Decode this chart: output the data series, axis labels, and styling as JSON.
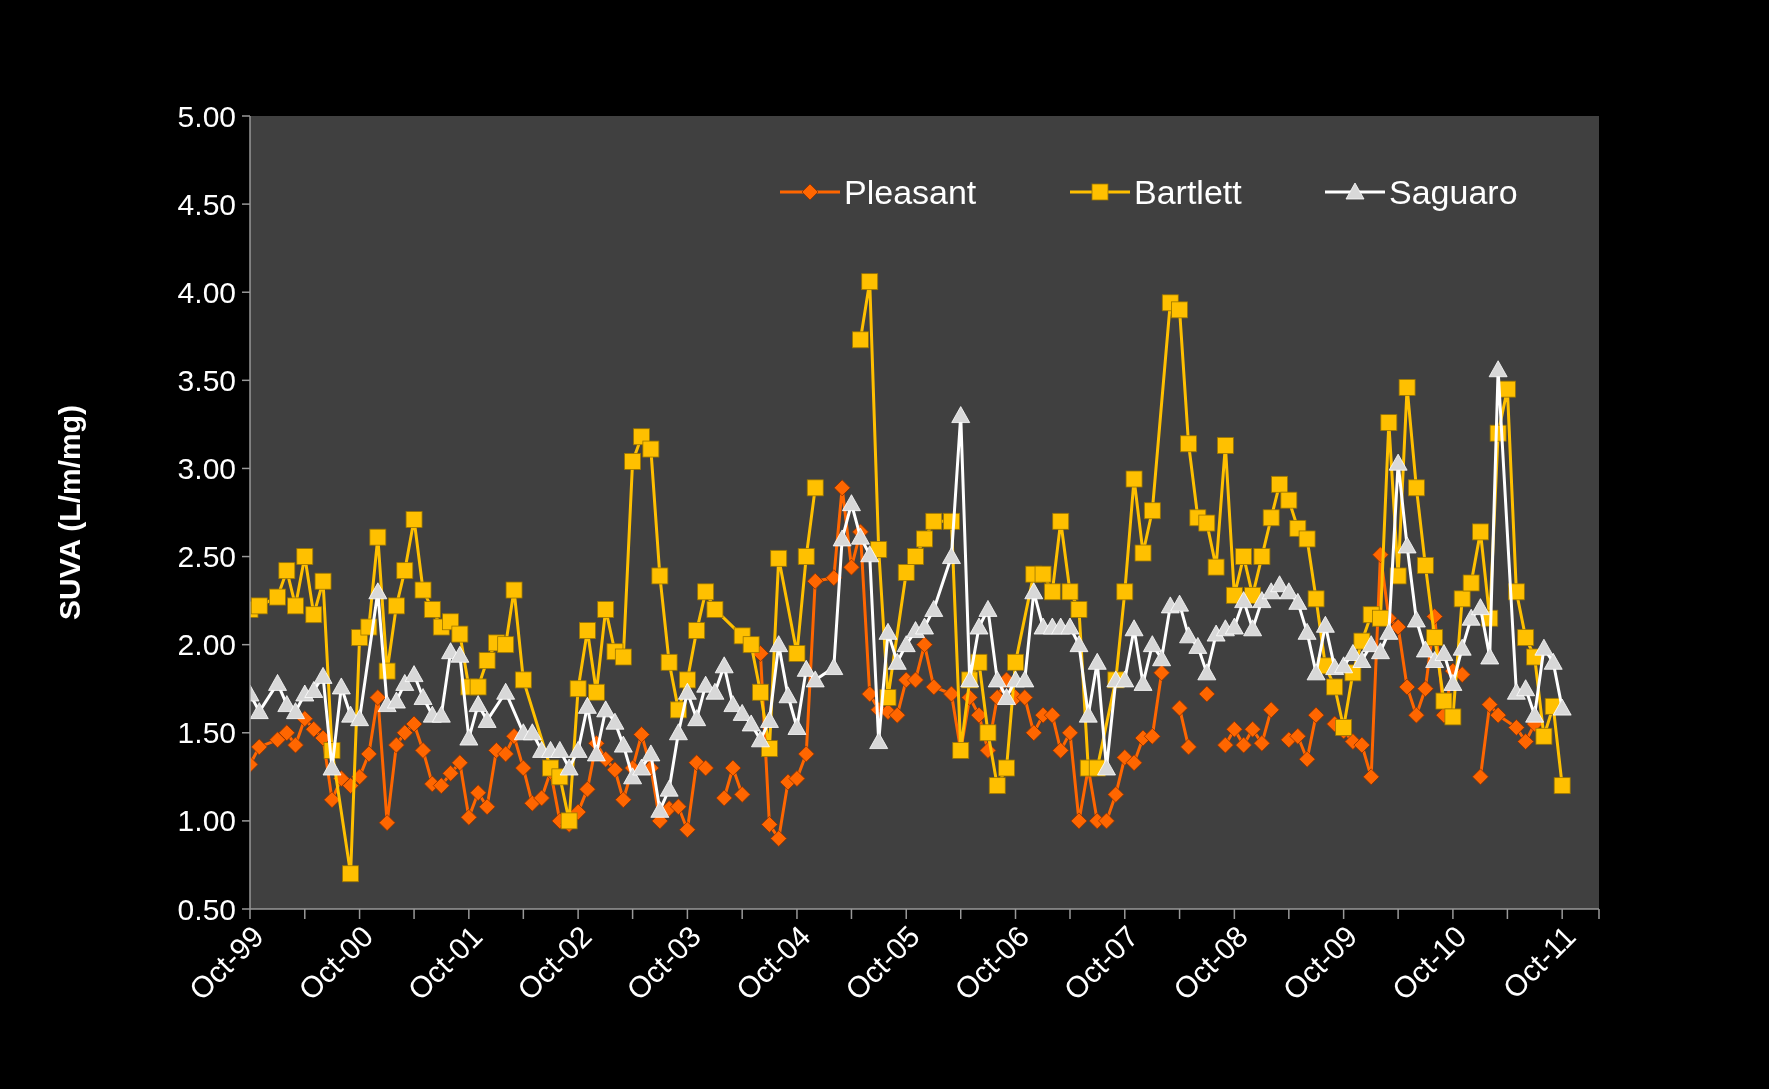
{
  "chart_data": {
    "type": "line",
    "ylabel": "SUVA (L/m/mg)",
    "xlim": [
      "1999-10",
      "2012-02"
    ],
    "ylim": [
      0.5,
      5
    ],
    "yticks": [
      {
        "value": 0.5,
        "label": "0.50"
      },
      {
        "value": 1,
        "label": "1.00"
      },
      {
        "value": 1.5,
        "label": "1.50"
      },
      {
        "value": 2,
        "label": "2.00"
      },
      {
        "value": 2.5,
        "label": "2.50"
      },
      {
        "value": 3,
        "label": "3.00"
      },
      {
        "value": 3.5,
        "label": "3.50"
      },
      {
        "value": 4,
        "label": "4.00"
      },
      {
        "value": 4.5,
        "label": "4.50"
      },
      {
        "value": 5,
        "label": "5.00"
      }
    ],
    "xticks": [
      {
        "value": "1999-10",
        "label": "Oct-99"
      },
      {
        "value": "2000-04",
        "label": null
      },
      {
        "value": "2000-10",
        "label": "Oct-00"
      },
      {
        "value": "2001-04",
        "label": null
      },
      {
        "value": "2001-10",
        "label": "Oct-01"
      },
      {
        "value": "2002-04",
        "label": null
      },
      {
        "value": "2002-10",
        "label": "Oct-02"
      },
      {
        "value": "2003-04",
        "label": null
      },
      {
        "value": "2003-10",
        "label": "Oct-03"
      },
      {
        "value": "2004-04",
        "label": null
      },
      {
        "value": "2004-10",
        "label": "Oct-04"
      },
      {
        "value": "2005-04",
        "label": null
      },
      {
        "value": "2005-10",
        "label": "Oct-05"
      },
      {
        "value": "2006-04",
        "label": null
      },
      {
        "value": "2006-10",
        "label": "Oct-06"
      },
      {
        "value": "2007-04",
        "label": null
      },
      {
        "value": "2007-10",
        "label": "Oct-07"
      },
      {
        "value": "2008-04",
        "label": null
      },
      {
        "value": "2008-10",
        "label": "Oct-08"
      },
      {
        "value": "2009-04",
        "label": null
      },
      {
        "value": "2009-10",
        "label": "Oct-09"
      },
      {
        "value": "2010-04",
        "label": null
      },
      {
        "value": "2010-10",
        "label": "Oct-10"
      },
      {
        "value": "2011-04",
        "label": null
      },
      {
        "value": "2011-10",
        "label": "Oct-11"
      },
      {
        "value": "2012-02",
        "label": null
      }
    ],
    "grid": false,
    "legend": "top right",
    "line_style": "solid",
    "series": [
      {
        "name": "Pleasant",
        "color": "#ff6600",
        "marker": "diamond",
        "x": [
          "1999-10",
          "1999-11",
          "2000-01",
          "2000-02",
          "2000-03",
          "2000-04",
          "2000-05",
          "2000-06",
          "2000-07",
          "2000-08",
          "2000-09",
          "2000-10",
          "2000-11",
          "2000-12",
          "2001-01",
          "2001-02",
          "2001-03",
          "2001-04",
          "2001-05",
          "2001-06",
          "2001-07",
          "2001-08",
          "2001-09",
          "2001-10",
          "2001-11",
          "2001-12",
          "2002-01",
          "2002-02",
          "2002-03",
          "2002-04",
          "2002-05",
          "2002-06",
          "2002-07",
          "2002-08",
          "2002-09",
          "2002-10",
          "2002-11",
          "2002-12",
          "2003-01",
          "2003-02",
          "2003-03",
          "2003-04",
          "2003-05",
          "2003-06",
          "2003-07",
          "2003-08",
          "2003-09",
          "2003-10",
          "2003-11",
          "2003-12",
          "2004-01",
          "2004-02",
          "2004-03",
          "2004-04",
          "2004-05",
          "2004-06",
          "2004-07",
          "2004-08",
          "2004-09",
          "2004-10",
          "2004-11",
          "2004-12",
          "2005-02",
          "2005-03",
          "2005-04",
          "2005-05",
          "2005-06",
          "2005-07",
          "2005-08",
          "2005-09",
          "2005-10",
          "2005-11",
          "2005-12",
          "2006-01",
          "2006-03",
          "2006-04",
          "2006-05",
          "2006-06",
          "2006-07",
          "2006-08",
          "2006-09",
          "2006-10",
          "2006-11",
          "2006-12",
          "2007-01",
          "2007-02",
          "2007-03",
          "2007-04",
          "2007-05",
          "2007-06",
          "2007-07",
          "2007-08",
          "2007-09",
          "2007-10",
          "2007-11",
          "2007-12",
          "2008-01",
          "2008-02",
          "2008-03",
          "2008-04",
          "2008-05",
          "2008-06",
          "2008-07",
          "2008-08",
          "2008-09",
          "2008-10",
          "2008-11",
          "2008-12",
          "2009-01",
          "2009-02",
          "2009-03",
          "2009-04",
          "2009-05",
          "2009-06",
          "2009-07",
          "2009-08",
          "2009-09",
          "2009-10",
          "2009-11",
          "2009-12",
          "2010-01",
          "2010-02",
          "2010-03",
          "2010-04",
          "2010-05",
          "2010-06",
          "2010-07",
          "2010-08",
          "2010-09",
          "2010-10",
          "2010-11",
          "2010-12",
          "2011-01",
          "2011-02",
          "2011-03",
          "2011-05",
          "2011-06",
          "2011-07"
        ],
        "values": [
          1.32,
          1.42,
          1.46,
          1.5,
          1.43,
          1.58,
          1.52,
          1.47,
          1.12,
          1.24,
          1.2,
          1.25,
          1.38,
          1.7,
          0.99,
          1.43,
          1.5,
          1.55,
          1.4,
          1.21,
          1.2,
          1.27,
          1.33,
          1.02,
          1.16,
          1.08,
          1.4,
          1.38,
          1.48,
          1.3,
          1.1,
          1.13,
          1.28,
          1.0,
          0.98,
          1.05,
          1.18,
          1.44,
          1.35,
          1.29,
          1.12,
          1.3,
          1.49,
          1.3,
          1.0,
          1.07,
          1.08,
          0.95,
          1.33,
          1.3,
          null,
          1.13,
          1.3,
          1.15,
          null,
          1.95,
          0.98,
          0.9,
          1.22,
          1.24,
          1.38,
          2.36,
          2.38,
          2.89,
          2.44,
          2.64,
          1.72,
          1.63,
          1.62,
          1.6,
          1.8,
          1.8,
          2.0,
          1.76,
          1.72,
          1.4,
          1.7,
          1.6,
          1.4,
          1.7,
          1.8,
          1.7,
          1.7,
          1.5,
          1.6,
          1.6,
          1.4,
          1.5,
          1.0,
          1.3,
          1.0,
          1.0,
          1.15,
          1.36,
          1.33,
          1.47,
          1.48,
          1.84,
          null,
          1.64,
          1.42,
          null,
          1.72,
          null,
          1.43,
          1.52,
          1.43,
          1.52,
          1.44,
          1.63,
          null,
          1.46,
          1.48,
          1.35,
          1.6,
          null,
          1.55,
          1.51,
          1.45,
          1.43,
          1.25,
          2.51,
          2.15,
          2.1,
          1.76,
          1.6,
          1.75,
          2.16,
          1.6,
          1.85,
          1.83,
          null,
          1.25,
          1.66,
          1.6,
          1.53,
          1.45,
          1.55
        ]
      },
      {
        "name": "Bartlett",
        "color": "#ffc000",
        "marker": "square",
        "x": [
          "1999-10",
          "1999-11",
          "2000-01",
          "2000-02",
          "2000-03",
          "2000-04",
          "2000-05",
          "2000-06",
          "2000-07",
          "2000-09",
          "2000-10",
          "2000-11",
          "2000-12",
          "2001-01",
          "2001-02",
          "2001-03",
          "2001-04",
          "2001-05",
          "2001-06",
          "2001-07",
          "2001-08",
          "2001-09",
          "2001-10",
          "2001-11",
          "2001-12",
          "2002-01",
          "2002-02",
          "2002-03",
          "2002-04",
          "2002-07",
          "2002-08",
          "2002-09",
          "2002-10",
          "2002-11",
          "2002-12",
          "2003-01",
          "2003-02",
          "2003-03",
          "2003-04",
          "2003-05",
          "2003-06",
          "2003-07",
          "2003-08",
          "2003-09",
          "2003-10",
          "2003-11",
          "2003-12",
          "2004-01",
          "2004-04",
          "2004-05",
          "2004-06",
          "2004-07",
          "2004-08",
          "2004-10",
          "2004-11",
          "2004-12",
          "2005-02",
          "2005-05",
          "2005-06",
          "2005-07",
          "2005-08",
          "2005-10",
          "2005-11",
          "2005-12",
          "2006-01",
          "2006-03",
          "2006-04",
          "2006-05",
          "2006-06",
          "2006-07",
          "2006-08",
          "2006-09",
          "2006-10",
          "2006-12",
          "2007-01",
          "2007-02",
          "2007-03",
          "2007-04",
          "2007-05",
          "2007-06",
          "2007-07",
          "2007-09",
          "2007-10",
          "2007-11",
          "2007-12",
          "2008-01",
          "2008-03",
          "2008-04",
          "2008-05",
          "2008-06",
          "2008-07",
          "2008-08",
          "2008-09",
          "2008-10",
          "2008-11",
          "2008-12",
          "2009-01",
          "2009-02",
          "2009-03",
          "2009-04",
          "2009-05",
          "2009-06",
          "2009-07",
          "2009-08",
          "2009-09",
          "2009-10",
          "2009-11",
          "2009-12",
          "2010-01",
          "2010-02",
          "2010-03",
          "2010-04",
          "2010-05",
          "2010-06",
          "2010-07",
          "2010-08",
          "2010-09",
          "2010-10",
          "2010-11",
          "2010-12",
          "2011-01",
          "2011-02",
          "2011-03",
          "2011-04",
          "2011-05",
          "2011-06",
          "2011-07",
          "2011-08",
          "2011-09",
          "2011-10"
        ],
        "values": [
          2.2,
          2.22,
          2.27,
          2.42,
          2.22,
          2.5,
          2.17,
          2.36,
          1.4,
          0.7,
          2.04,
          2.1,
          2.61,
          1.85,
          2.22,
          2.42,
          2.71,
          2.31,
          2.2,
          2.1,
          2.13,
          2.06,
          1.76,
          1.76,
          1.91,
          2.01,
          2.0,
          2.31,
          1.8,
          1.3,
          1.25,
          1.0,
          1.75,
          2.08,
          1.73,
          2.2,
          1.96,
          1.93,
          3.04,
          3.18,
          3.11,
          2.39,
          1.9,
          1.63,
          1.8,
          2.08,
          2.3,
          2.2,
          2.05,
          2.0,
          1.73,
          1.41,
          2.49,
          1.95,
          2.5,
          2.89,
          null,
          3.73,
          4.06,
          2.54,
          1.7,
          2.41,
          2.5,
          2.6,
          2.7,
          2.7,
          1.4,
          1.8,
          1.9,
          1.5,
          1.2,
          1.3,
          1.9,
          2.4,
          2.4,
          2.3,
          2.7,
          2.3,
          2.2,
          1.3,
          1.3,
          1.8,
          2.3,
          2.94,
          2.52,
          2.76,
          3.94,
          3.9,
          3.14,
          2.72,
          2.69,
          2.44,
          3.13,
          2.28,
          2.5,
          2.28,
          2.5,
          2.72,
          2.91,
          2.82,
          2.66,
          2.6,
          2.26,
          1.88,
          1.76,
          1.53,
          1.84,
          2.02,
          2.17,
          2.15,
          3.26,
          2.39,
          3.46,
          2.89,
          2.45,
          2.04,
          1.68,
          1.59,
          2.26,
          2.35,
          2.64,
          2.15,
          3.2,
          3.45,
          2.3,
          2.04,
          1.93,
          1.48,
          1.65,
          1.2
        ]
      },
      {
        "name": "Saguaro",
        "color": "#ffffff",
        "marker": "triangle",
        "x": [
          "1999-10",
          "1999-11",
          "2000-01",
          "2000-02",
          "2000-03",
          "2000-04",
          "2000-05",
          "2000-06",
          "2000-07",
          "2000-08",
          "2000-09",
          "2000-10",
          "2000-12",
          "2001-01",
          "2001-02",
          "2001-03",
          "2001-04",
          "2001-05",
          "2001-06",
          "2001-07",
          "2001-08",
          "2001-09",
          "2001-10",
          "2001-11",
          "2001-12",
          "2002-02",
          "2002-04",
          "2002-05",
          "2002-06",
          "2002-07",
          "2002-08",
          "2002-09",
          "2002-10",
          "2002-11",
          "2002-12",
          "2003-01",
          "2003-02",
          "2003-03",
          "2003-04",
          "2003-05",
          "2003-06",
          "2003-07",
          "2003-08",
          "2003-09",
          "2003-10",
          "2003-11",
          "2003-12",
          "2004-01",
          "2004-02",
          "2004-03",
          "2004-04",
          "2004-05",
          "2004-06",
          "2004-07",
          "2004-08",
          "2004-09",
          "2004-10",
          "2004-11",
          "2004-12",
          "2005-02",
          "2005-03",
          "2005-04",
          "2005-05",
          "2005-06",
          "2005-07",
          "2005-08",
          "2005-09",
          "2005-10",
          "2005-11",
          "2005-12",
          "2006-01",
          "2006-03",
          "2006-04",
          "2006-05",
          "2006-06",
          "2006-07",
          "2006-08",
          "2006-09",
          "2006-10",
          "2006-11",
          "2006-12",
          "2007-01",
          "2007-02",
          "2007-03",
          "2007-04",
          "2007-05",
          "2007-06",
          "2007-07",
          "2007-08",
          "2007-09",
          "2007-10",
          "2007-11",
          "2007-12",
          "2008-01",
          "2008-02",
          "2008-03",
          "2008-04",
          "2008-05",
          "2008-06",
          "2008-07",
          "2008-08",
          "2008-09",
          "2008-10",
          "2008-11",
          "2008-12",
          "2009-01",
          "2009-02",
          "2009-03",
          "2009-04",
          "2009-05",
          "2009-06",
          "2009-07",
          "2009-08",
          "2009-09",
          "2009-10",
          "2009-11",
          "2009-12",
          "2010-01",
          "2010-02",
          "2010-03",
          "2010-04",
          "2010-05",
          "2010-06",
          "2010-07",
          "2010-08",
          "2010-09",
          "2010-10",
          "2010-11",
          "2010-12",
          "2011-01",
          "2011-02",
          "2011-03",
          "2011-05",
          "2011-06",
          "2011-07",
          "2011-08",
          "2011-09",
          "2011-10"
        ],
        "values": [
          1.72,
          1.62,
          1.78,
          1.66,
          1.62,
          1.72,
          1.74,
          1.82,
          1.3,
          1.76,
          1.6,
          1.58,
          2.3,
          1.66,
          1.68,
          1.78,
          1.83,
          1.7,
          1.6,
          1.6,
          1.96,
          1.94,
          1.47,
          1.66,
          1.57,
          1.73,
          1.5,
          1.5,
          1.4,
          1.4,
          1.4,
          1.3,
          1.4,
          1.65,
          1.38,
          1.63,
          1.56,
          1.43,
          1.25,
          1.3,
          1.38,
          1.06,
          1.18,
          1.5,
          1.73,
          1.58,
          1.77,
          1.73,
          1.88,
          1.66,
          1.61,
          1.55,
          1.46,
          1.57,
          2.0,
          1.71,
          1.53,
          1.86,
          1.8,
          1.87,
          2.6,
          2.8,
          2.61,
          2.51,
          1.45,
          2.07,
          1.9,
          2.0,
          2.08,
          2.1,
          2.2,
          2.5,
          3.3,
          1.8,
          2.1,
          2.2,
          1.8,
          1.7,
          1.8,
          1.8,
          2.3,
          2.1,
          2.1,
          2.1,
          2.1,
          2.0,
          1.6,
          1.9,
          1.3,
          1.8,
          1.8,
          2.09,
          1.78,
          2.0,
          1.92,
          2.22,
          2.23,
          2.05,
          1.99,
          1.84,
          2.06,
          2.09,
          2.1,
          2.25,
          2.09,
          2.25,
          2.3,
          2.34,
          2.3,
          2.24,
          2.07,
          1.84,
          2.11,
          1.87,
          1.88,
          1.95,
          1.91,
          2.0,
          1.96,
          2.07,
          3.03,
          2.56,
          2.14,
          1.97,
          1.91,
          1.95,
          1.78,
          1.98,
          2.15,
          2.21,
          1.93,
          3.56,
          1.73,
          1.75,
          1.6,
          1.98,
          1.9,
          1.64
        ]
      }
    ]
  }
}
